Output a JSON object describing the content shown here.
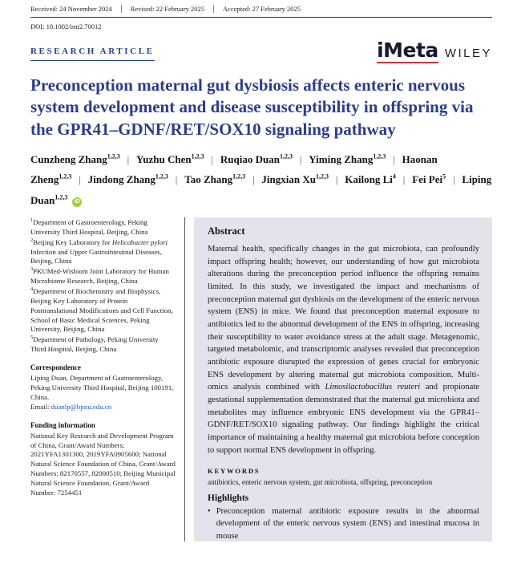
{
  "header": {
    "received": "Received: 24 November 2024",
    "revised": "Revised: 22 February 2025",
    "accepted": "Accepted: 27 February 2025",
    "doi": "DOI: 10.1002/imt2.70012",
    "article_type": "RESEARCH ARTICLE"
  },
  "logo": {
    "journal": "iMeta",
    "publisher": "WILEY"
  },
  "title": "Preconception maternal gut dysbiosis affects enteric nervous system development and disease susceptibility in offspring via the GPR41–GDNF/RET/SOX10 signaling pathway",
  "authors": {
    "separator": "|",
    "orcid_icon_text": "iD",
    "list": [
      {
        "name": "Cunzheng Zhang",
        "sup": "1,2,3"
      },
      {
        "name": "Yuzhu Chen",
        "sup": "1,2,3"
      },
      {
        "name": "Ruqiao Duan",
        "sup": "1,2,3"
      },
      {
        "name": "Yiming Zhang",
        "sup": "1,2,3"
      },
      {
        "name": "Haonan Zheng",
        "sup": "1,2,3"
      },
      {
        "name": "Jindong Zhang",
        "sup": "1,2,3"
      },
      {
        "name": "Tao Zhang",
        "sup": "1,2,3"
      },
      {
        "name": "Jingxian Xu",
        "sup": "1,2,3"
      },
      {
        "name": "Kailong Li",
        "sup": "4"
      },
      {
        "name": "Fei Pei",
        "sup": "5"
      },
      {
        "name": "Liping Duan",
        "sup": "1,2,3",
        "orcid": true
      }
    ]
  },
  "affiliations": [
    {
      "sup": "1",
      "segments": [
        {
          "t": "Department of Gastroenterology, Peking University Third Hospital, Beijing, China"
        }
      ]
    },
    {
      "sup": "2",
      "segments": [
        {
          "t": "Beijing Key Laboratory for "
        },
        {
          "t": "Helicobacter pylori",
          "i": true
        },
        {
          "t": " Infection and Upper Gastrointestinal Diseases, Beijing, China"
        }
      ]
    },
    {
      "sup": "3",
      "segments": [
        {
          "t": "PKUMed-Wisbiom Joint Laboratory for Human Microbiome Research, Beijing, China"
        }
      ]
    },
    {
      "sup": "4",
      "segments": [
        {
          "t": "Department of Biochemistry and Biophysics, Beijing Key Laboratory of Protein Posttranslational Modifications and Cell Function, School of Basic Medical Sciences, Peking University, Beijing, China"
        }
      ]
    },
    {
      "sup": "5",
      "segments": [
        {
          "t": "Department of Pathology, Peking University Third Hospital, Beijing, China"
        }
      ]
    }
  ],
  "correspondence": {
    "heading": "Correspondence",
    "text": "Liping Duan, Department of Gastroenterology, Peking University Third Hospital, Beijing 100191, China.",
    "email_label": "Email: ",
    "email": "duanlp@bjmu.edu.cn"
  },
  "funding": {
    "heading": "Funding information",
    "text": "National Key Research and Development Program of China, Grant/Award Numbers: 2021YFA1301300, 2019YFA0905600; National Natural Science Foundation of China, Grant/Award Numbers: 82170557, 82000510; Beijing Municipal Natural Science Foundation, Grant/Award Number: 7254451"
  },
  "abstract": {
    "heading": "Abstract",
    "segments": [
      {
        "t": "Maternal health, specifically changes in the gut microbiota, can profoundly impact offspring health; however, our understanding of how gut microbiota alterations during the preconception period influence the offspring remains limited. In this study, we investigated the impact and mechanisms of preconception maternal gut dysbiosis on the development of the enteric nervous system (ENS) in mice. We found that preconception maternal exposure to antibiotics led to the abnormal development of the ENS in offspring, increasing their susceptibility to water avoidance stress at the adult stage. Metagenomic, targeted metabolomic, and transcriptomic analyses revealed that preconception antibiotic exposure disrupted the expression of genes crucial for embryonic ENS development by altering maternal gut microbiota composition. Multi-omics analysis combined with "
      },
      {
        "t": "Limosilactobacillus reuteri",
        "i": true
      },
      {
        "t": " and propionate gestational supplementation demonstrated that the maternal gut microbiota and metabolites may influence embryonic ENS development via the GPR41–GDNF/RET/SOX10 signaling pathway. Our findings highlight the critical importance of maintaining a healthy maternal gut microbiota before conception to support normal ENS development in offspring."
      }
    ]
  },
  "keywords": {
    "heading": "KEYWORDS",
    "text": "antibiotics, enteric nervous system, gut microbiota, offspring, preconception"
  },
  "highlights": {
    "heading": "Highlights",
    "bullet": "•",
    "items": [
      "Preconception maternal antibiotic exposure results in the abnormal development of the enteric nervous system (ENS) and intestinal mucosa in mouse"
    ]
  },
  "colors": {
    "title_blue": "#2c3c8e",
    "article_type_blue": "#24418f",
    "abstract_bg": "#e3e3ec",
    "accent_teal": "#448b85",
    "orcid_green": "#a6ce39",
    "logo_red": "#c8363d",
    "email_blue": "#2356c7"
  }
}
